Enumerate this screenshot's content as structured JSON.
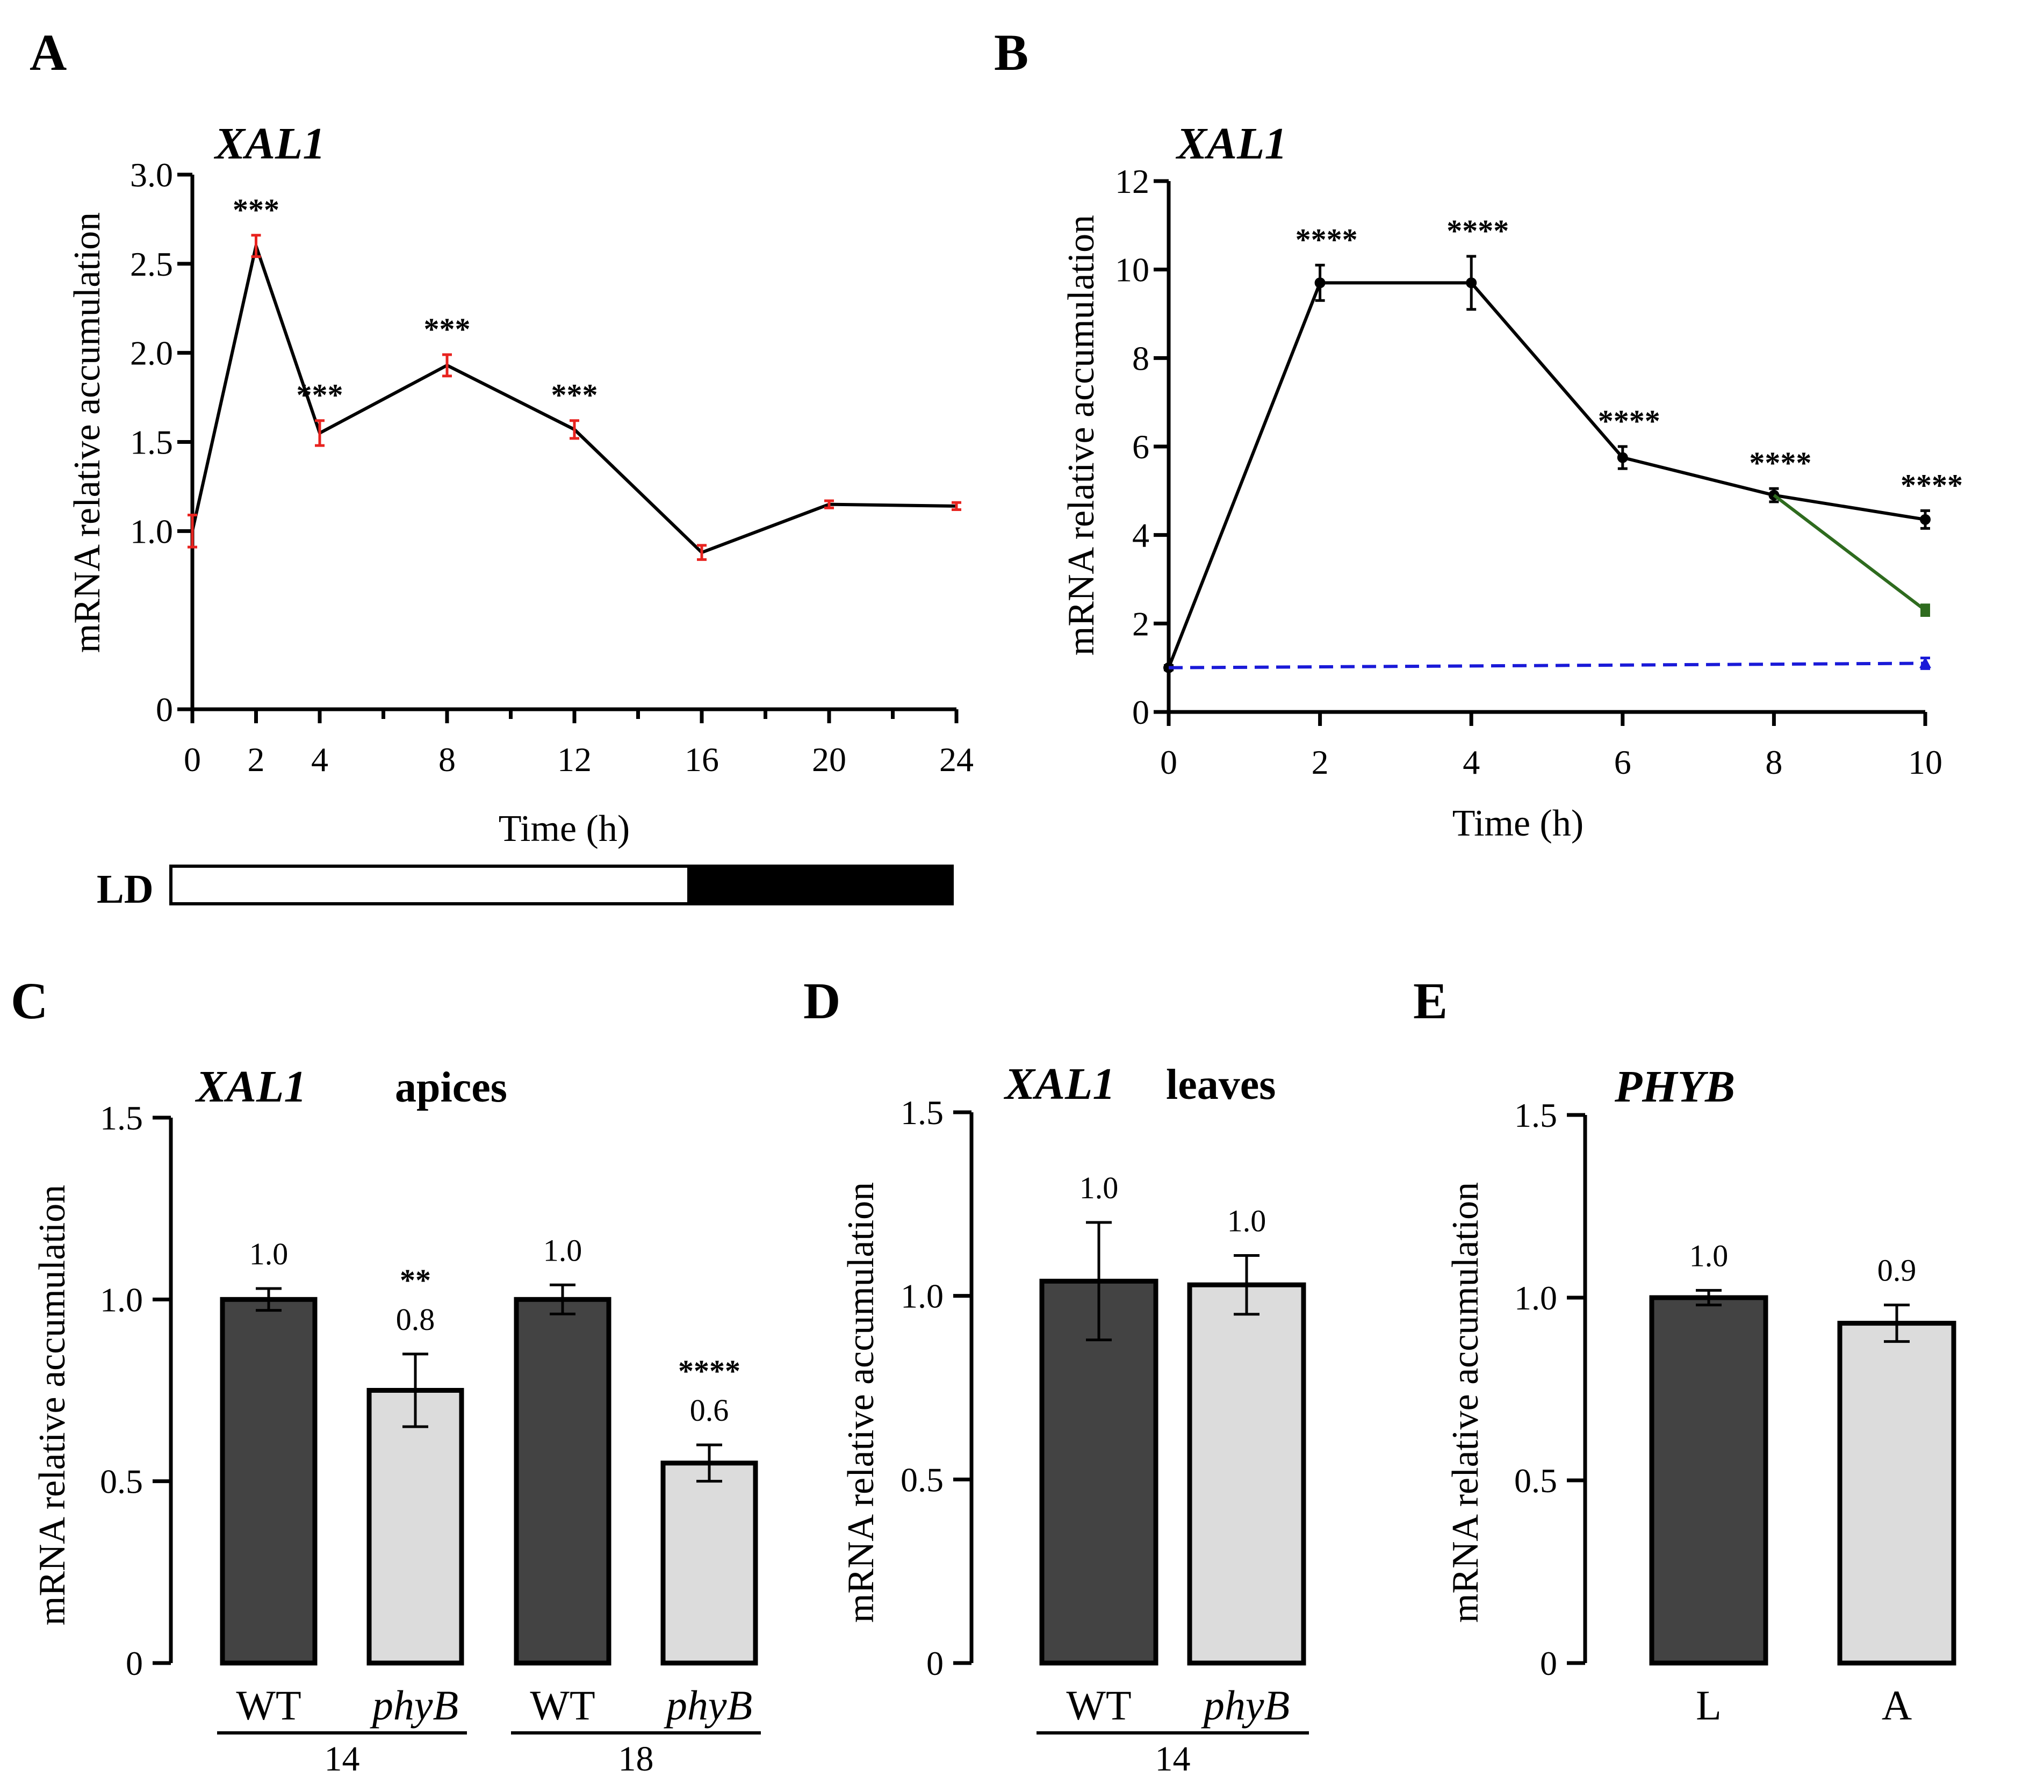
{
  "panels": {
    "A": {
      "label": "A",
      "chart_data": {
        "type": "line",
        "title": "XAL1",
        "xlabel": "Time (h)",
        "ylabel": "mRNA relative accumulation",
        "xlim": [
          0,
          24
        ],
        "ylim": [
          0,
          3.0
        ],
        "xticks": [
          "0",
          "2",
          "4",
          "8",
          "12",
          "16",
          "20",
          "24"
        ],
        "xtick_values": [
          0,
          2,
          4,
          8,
          12,
          16,
          20,
          24
        ],
        "yticks": [
          "0",
          "1.0",
          "1.5",
          "2.0",
          "2.5",
          "3.0"
        ],
        "ytick_values": [
          0,
          1.0,
          1.5,
          2.0,
          2.5,
          3.0
        ],
        "series": [
          {
            "name": "XAL1",
            "color": "#000000",
            "error_color": "#e8231f",
            "x": [
              0,
              2,
              4,
              8,
              12,
              16,
              20,
              24
            ],
            "y": [
              1.0,
              2.6,
              1.55,
              1.93,
              1.57,
              0.88,
              1.15,
              1.14
            ],
            "err": [
              0.09,
              0.06,
              0.07,
              0.06,
              0.05,
              0.04,
              0.02,
              0.02
            ],
            "annotations": [
              "",
              "***",
              "***",
              "***",
              "***",
              "",
              "",
              ""
            ]
          }
        ],
        "photoperiod": {
          "label": "LD",
          "light_hours": [
            0,
            16
          ],
          "dark_hours": [
            16,
            24
          ]
        }
      }
    },
    "B": {
      "label": "B",
      "chart_data": {
        "type": "line",
        "title": "XAL1",
        "xlabel": "Time (h)",
        "ylabel": "mRNA relative accumulation",
        "xlim": [
          0,
          10
        ],
        "ylim": [
          0,
          12
        ],
        "xticks": [
          "0",
          "2",
          "4",
          "6",
          "8",
          "10"
        ],
        "xtick_values": [
          0,
          2,
          4,
          6,
          8,
          10
        ],
        "yticks": [
          "0",
          "2",
          "4",
          "6",
          "8",
          "10",
          "12"
        ],
        "ytick_values": [
          0,
          2,
          4,
          6,
          8,
          10,
          12
        ],
        "series": [
          {
            "name": "black",
            "color": "#000000",
            "style": "solid",
            "marker": "circle",
            "x": [
              0,
              2,
              4,
              6,
              8,
              10
            ],
            "y": [
              1.0,
              9.7,
              9.7,
              5.75,
              4.9,
              4.35
            ],
            "err": [
              0.05,
              0.4,
              0.6,
              0.25,
              0.15,
              0.2
            ],
            "annotations": [
              "",
              "****",
              "****",
              "****",
              "****",
              "****"
            ]
          },
          {
            "name": "green",
            "color": "#2e6b1e",
            "style": "solid",
            "marker": "square",
            "x": [
              8,
              10
            ],
            "y": [
              4.9,
              2.3
            ],
            "err": [
              0.0,
              0.12
            ]
          },
          {
            "name": "blue",
            "color": "#1a1ad8",
            "style": "dashed",
            "marker": "triangle",
            "x": [
              0,
              10
            ],
            "y": [
              1.0,
              1.1
            ],
            "err": [
              0.0,
              0.12
            ]
          }
        ]
      }
    },
    "C": {
      "label": "C",
      "chart_data": {
        "type": "bar",
        "title": "XAL1",
        "subtitle": "apices",
        "ylabel": "mRNA relative accumulation",
        "ylim": [
          0,
          1.5
        ],
        "yticks": [
          "0",
          "0.5",
          "1.0",
          "1.5"
        ],
        "ytick_values": [
          0,
          0.5,
          1.0,
          1.5
        ],
        "categories": [
          "WT",
          "phyB",
          "WT",
          "phyB"
        ],
        "category_italic": [
          false,
          true,
          false,
          true
        ],
        "values": [
          1.0,
          0.75,
          1.0,
          0.55
        ],
        "errors": [
          0.03,
          0.1,
          0.04,
          0.05
        ],
        "data_labels": [
          "1.0",
          "0.8",
          "1.0",
          "0.6"
        ],
        "significance": [
          "",
          "**",
          "",
          "****"
        ],
        "colors": [
          "#434343",
          "#dcdcdc",
          "#434343",
          "#dcdcdc"
        ],
        "groups": [
          {
            "label": "14",
            "members": [
              0,
              1
            ]
          },
          {
            "label": "18",
            "members": [
              2,
              3
            ]
          }
        ]
      }
    },
    "D": {
      "label": "D",
      "chart_data": {
        "type": "bar",
        "title": "XAL1",
        "subtitle": "leaves",
        "ylabel": "mRNA relative accumulation",
        "ylim": [
          0,
          1.5
        ],
        "yticks": [
          "0",
          "0.5",
          "1.0",
          "1.5"
        ],
        "ytick_values": [
          0,
          0.5,
          1.0,
          1.5
        ],
        "categories": [
          "WT",
          "phyB"
        ],
        "category_italic": [
          false,
          true
        ],
        "values": [
          1.04,
          1.03
        ],
        "errors": [
          0.16,
          0.08
        ],
        "data_labels": [
          "1.0",
          "1.0"
        ],
        "significance": [
          "",
          ""
        ],
        "colors": [
          "#434343",
          "#dcdcdc"
        ],
        "groups": [
          {
            "label": "14",
            "members": [
              0,
              1
            ]
          }
        ]
      }
    },
    "E": {
      "label": "E",
      "chart_data": {
        "type": "bar",
        "title": "PHYB",
        "subtitle": "",
        "ylabel": "mRNA relative accumulation",
        "ylim": [
          0,
          1.5
        ],
        "yticks": [
          "0",
          "0.5",
          "1.0",
          "1.5"
        ],
        "ytick_values": [
          0,
          0.5,
          1.0,
          1.5
        ],
        "categories": [
          "L",
          "A"
        ],
        "category_italic": [
          false,
          false
        ],
        "values": [
          1.0,
          0.93
        ],
        "errors": [
          0.02,
          0.05
        ],
        "data_labels": [
          "1.0",
          "0.9"
        ],
        "significance": [
          "",
          ""
        ],
        "colors": [
          "#434343",
          "#dcdcdc"
        ],
        "groups": []
      }
    }
  }
}
